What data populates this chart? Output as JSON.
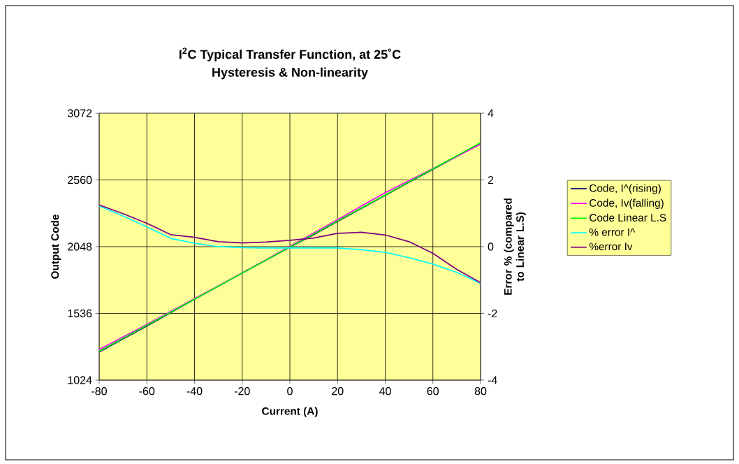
{
  "chart_data": {
    "type": "line",
    "title": "I$^{2}$C Typical Transfer Function, at 25˚C",
    "subtitle": "Hysteresis & Non-linearity",
    "xlabel": "Current (A)",
    "ylabel": "Output Code",
    "y2label": "Error % (compared to Linear L.S)",
    "x": [
      -80,
      -70,
      -60,
      -50,
      -40,
      -30,
      -20,
      -10,
      0,
      10,
      20,
      30,
      40,
      50,
      60,
      70,
      80
    ],
    "xlim": [
      -80,
      80
    ],
    "xticks": [
      -80,
      -60,
      -40,
      -20,
      0,
      20,
      40,
      60,
      80
    ],
    "ylim": [
      1024,
      3072
    ],
    "yticks": [
      1024,
      1536,
      2048,
      2560,
      3072
    ],
    "y2lim": [
      -4,
      4
    ],
    "y2ticks": [
      -4,
      -2,
      0,
      2,
      4
    ],
    "grid": true,
    "legend": "right",
    "marker": "none",
    "series": [
      {
        "name": "Code, I^(rising)",
        "color": "#000080",
        "values": [
          1240,
          1340,
          1440,
          1542,
          1645,
          null,
          1845,
          null,
          2044,
          2140,
          2242,
          2342,
          2442,
          2542,
          2642,
          null,
          2840
        ]
      },
      {
        "name": "Code, Iv(falling)",
        "color": "#ff00ff",
        "values": [
          1258,
          1355,
          1452,
          1550,
          1650,
          1748,
          1847,
          1948,
          2050,
          2152,
          2255,
          2360,
          2462,
          2555,
          null,
          2740,
          2835
        ]
      },
      {
        "name": "Code Linear L.S",
        "color": "#00ff00",
        "x": [
          -80,
          80
        ],
        "values": [
          1245,
          2845
        ]
      },
      {
        "name": "% error I^",
        "color": "#00ffff",
        "axis": "y2",
        "values": [
          1.22,
          0.92,
          0.59,
          0.25,
          0.1,
          0.0,
          -0.03,
          -0.04,
          -0.04,
          -0.04,
          -0.04,
          -0.09,
          -0.17,
          -0.33,
          -0.52,
          -0.77,
          -1.1
        ]
      },
      {
        "name": "%error Iv",
        "color": "#800080",
        "axis": "y2",
        "values": [
          1.25,
          0.99,
          0.7,
          0.36,
          0.28,
          0.15,
          0.11,
          0.14,
          0.19,
          0.26,
          0.4,
          0.43,
          0.35,
          0.15,
          -0.2,
          -0.68,
          -1.08
        ]
      }
    ]
  }
}
